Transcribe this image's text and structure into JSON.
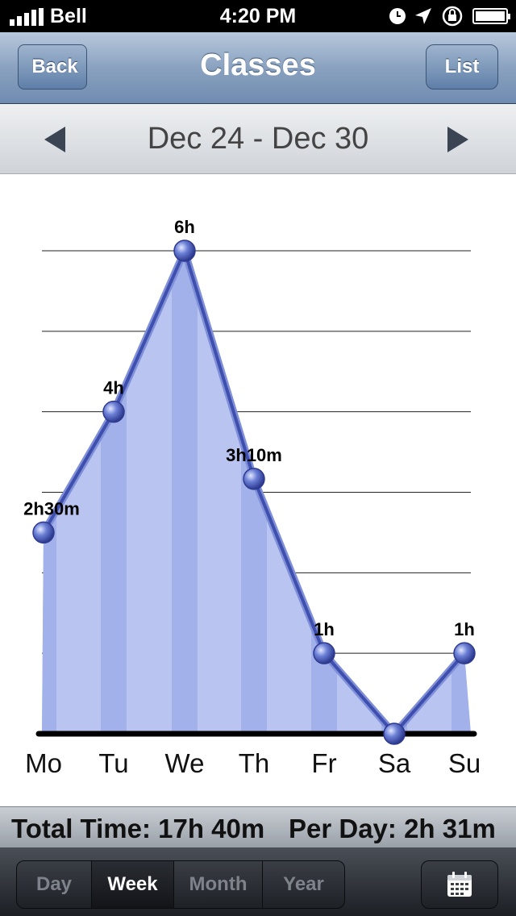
{
  "status": {
    "carrier": "Bell",
    "time": "4:20 PM"
  },
  "nav": {
    "back_label": "Back",
    "title": "Classes",
    "list_label": "List"
  },
  "date_range": "Dec 24 - Dec 30",
  "chart_data": {
    "type": "area",
    "categories": [
      "Mo",
      "Tu",
      "We",
      "Th",
      "Fr",
      "Sa",
      "Su"
    ],
    "values": [
      2.5,
      4,
      6,
      3.1667,
      1,
      0,
      1
    ],
    "labels": [
      "2h30m",
      "4h",
      "6h",
      "3h10m",
      "1h",
      "",
      "1h"
    ],
    "ylim": [
      0,
      6
    ],
    "grid": true,
    "colors": {
      "line": "#3f4fae",
      "fill": "#b9c5f0",
      "band": "#a2b1ea",
      "point": "#6b7fd6"
    }
  },
  "totals": {
    "total": "Total Time: 17h 40m",
    "per_day": "Per Day: 2h 31m"
  },
  "toolbar": {
    "segments": [
      "Day",
      "Week",
      "Month",
      "Year"
    ],
    "selected": "Week",
    "calendar_icon": "calendar-icon"
  }
}
